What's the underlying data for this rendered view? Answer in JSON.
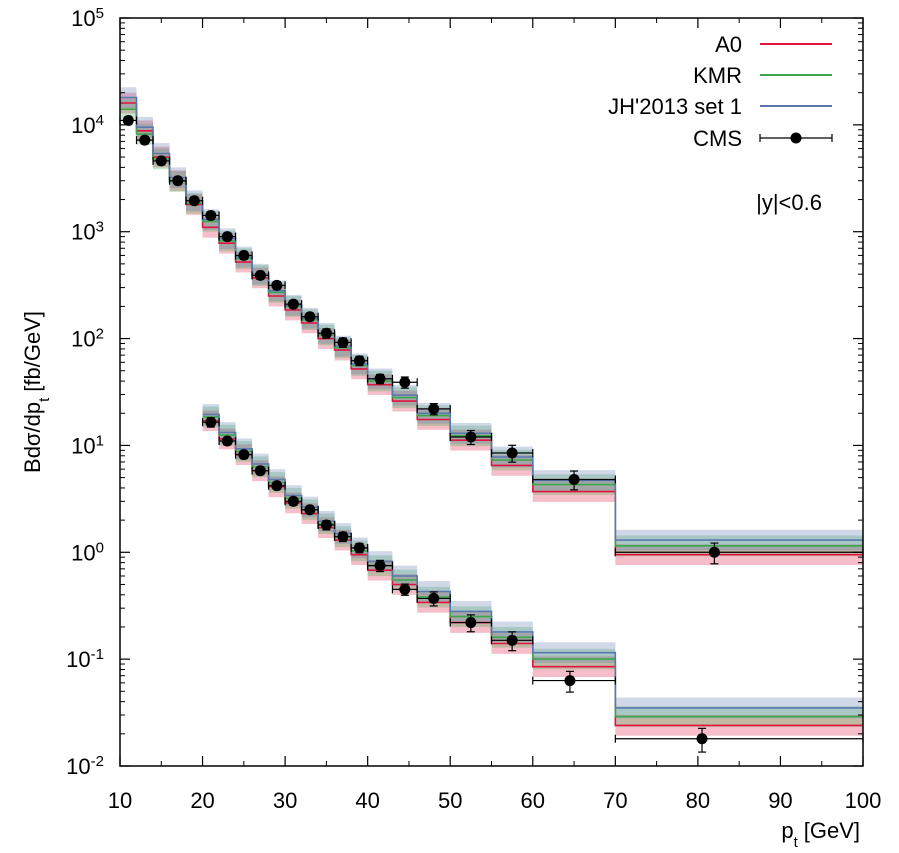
{
  "chart_data": {
    "type": "line",
    "xlabel_main": "p",
    "xlabel_sub": "t",
    "xlabel_unit": "[GeV]",
    "ylabel_pre": "Bdσ/dp",
    "ylabel_sub": "t",
    "ylabel_unit": "[fb/GeV]",
    "xlim": [
      10,
      100
    ],
    "ylim": [
      0.01,
      100000
    ],
    "yscale": "log",
    "xticks": [
      10,
      20,
      30,
      40,
      50,
      60,
      70,
      80,
      90,
      100
    ],
    "xtick_labels": [
      "10",
      "20",
      "30",
      "40",
      "50",
      "60",
      "70",
      "80",
      "90",
      "100"
    ],
    "yticks": [
      {
        "value": 0.01,
        "base": "10",
        "exp": "-2"
      },
      {
        "value": 0.1,
        "base": "10",
        "exp": "-1"
      },
      {
        "value": 1,
        "base": "10",
        "exp": "0"
      },
      {
        "value": 10,
        "base": "10",
        "exp": "1"
      },
      {
        "value": 100,
        "base": "10",
        "exp": "2"
      },
      {
        "value": 1000,
        "base": "10",
        "exp": "3"
      },
      {
        "value": 10000,
        "base": "10",
        "exp": "4"
      },
      {
        "value": 100000,
        "base": "10",
        "exp": "5"
      }
    ],
    "annotation": "|y|<0.6",
    "legend_position": "top-right",
    "legend": [
      {
        "label": "A0",
        "color": "#e0143c",
        "kind": "line"
      },
      {
        "label": "KMR",
        "color": "#3aa84a",
        "kind": "line"
      },
      {
        "label": "JH'2013 set 1",
        "color": "#5a78b0",
        "kind": "line"
      },
      {
        "label": "CMS",
        "color": "#000000",
        "kind": "errorbar"
      }
    ],
    "datasets": [
      {
        "name": "upper",
        "bin_edges": [
          10,
          12,
          14,
          16,
          18,
          20,
          22,
          24,
          26,
          28,
          30,
          32,
          34,
          36,
          38,
          40,
          43,
          46,
          50,
          55,
          60,
          70,
          100
        ],
        "theory": [
          {
            "name": "A0",
            "color": "#e0143c",
            "values": [
              16000,
              8800,
              5000,
              3000,
              1800,
              1100,
              780,
              520,
              370,
              250,
              185,
              140,
              100,
              78,
              52,
              37,
              26,
              17.5,
              11.2,
              6.5,
              3.7,
              0.95
            ]
          },
          {
            "name": "KMR",
            "color": "#3aa84a",
            "values": [
              14000,
              8200,
              4800,
              2950,
              1850,
              1250,
              820,
              560,
              390,
              270,
              200,
              150,
              108,
              82,
              56,
              40,
              28,
              19,
              12.3,
              7.3,
              4.3,
              1.15
            ]
          },
          {
            "name": "JH'2013 set 1",
            "color": "#5a78b0",
            "values": [
              18000,
              9500,
              5400,
              3200,
              1950,
              1300,
              860,
              580,
              400,
              280,
              205,
              155,
              112,
              85,
              58,
              42,
              29.5,
              20,
              13,
              7.8,
              4.7,
              1.3
            ]
          }
        ],
        "cms": {
          "x": [
            11,
            13,
            15,
            17,
            19,
            21,
            23,
            25,
            27,
            29,
            31,
            33,
            35,
            37,
            39,
            41.5,
            44.5,
            48,
            52.5,
            57.5,
            65,
            82
          ],
          "y": [
            11000,
            7200,
            4600,
            3000,
            1950,
            1420,
            900,
            600,
            390,
            315,
            210,
            160,
            112,
            92,
            62,
            42,
            39,
            22,
            12,
            8.5,
            4.8,
            1.0
          ],
          "xerr_lo": [
            1,
            1,
            1,
            1,
            1,
            1,
            1,
            1,
            1,
            1,
            1,
            1,
            1,
            1,
            1,
            1.5,
            1.5,
            2,
            2.5,
            2.5,
            5,
            12
          ],
          "xerr_hi": [
            1,
            1,
            1,
            1,
            1,
            1,
            1,
            1,
            1,
            1,
            1,
            1,
            1,
            1,
            1,
            1.5,
            1.5,
            2,
            2.5,
            2.5,
            5,
            18
          ],
          "yerr_rel": [
            0.08,
            0.08,
            0.08,
            0.08,
            0.08,
            0.08,
            0.08,
            0.08,
            0.08,
            0.08,
            0.08,
            0.08,
            0.1,
            0.1,
            0.1,
            0.1,
            0.12,
            0.12,
            0.15,
            0.18,
            0.2,
            0.22
          ]
        }
      },
      {
        "name": "lower",
        "bin_edges": [
          20,
          22,
          24,
          26,
          28,
          30,
          32,
          34,
          36,
          38,
          40,
          43,
          46,
          50,
          55,
          60,
          70,
          100
        ],
        "theory": [
          {
            "name": "A0",
            "color": "#e0143c",
            "values": [
              17,
              11.5,
              8.2,
              5.8,
              4.1,
              2.9,
              2.3,
              1.7,
              1.3,
              0.95,
              0.68,
              0.5,
              0.34,
              0.22,
              0.14,
              0.085,
              0.024
            ]
          },
          {
            "name": "KMR",
            "color": "#3aa84a",
            "values": [
              18.5,
              12.5,
              8.8,
              6.3,
              4.5,
              3.2,
              2.5,
              1.85,
              1.4,
              1.03,
              0.75,
              0.55,
              0.38,
              0.25,
              0.16,
              0.1,
              0.029
            ]
          },
          {
            "name": "JH'2013 set 1",
            "color": "#5a78b0",
            "values": [
              19.5,
              13.2,
              9.3,
              6.7,
              4.8,
              3.4,
              2.65,
              1.95,
              1.5,
              1.1,
              0.82,
              0.6,
              0.43,
              0.28,
              0.18,
              0.115,
              0.035
            ]
          }
        ],
        "cms": {
          "x": [
            21,
            23,
            25,
            27,
            29,
            31,
            33,
            35,
            37,
            39,
            41.5,
            44.5,
            48,
            52.5,
            57.5,
            64.5,
            80.5
          ],
          "y": [
            16.5,
            11,
            8.2,
            5.8,
            4.2,
            3.0,
            2.5,
            1.8,
            1.4,
            1.1,
            0.75,
            0.45,
            0.37,
            0.22,
            0.15,
            0.063,
            0.018
          ],
          "xerr_lo": [
            1,
            1,
            1,
            1,
            1,
            1,
            1,
            1,
            1,
            1,
            1.5,
            1.5,
            2,
            2.5,
            2.5,
            4.5,
            10.5
          ],
          "xerr_hi": [
            1,
            1,
            1,
            1,
            1,
            1,
            1,
            1,
            1,
            1,
            1.5,
            1.5,
            2,
            2.5,
            2.5,
            5.5,
            19.5
          ],
          "yerr_rel": [
            0.1,
            0.08,
            0.08,
            0.08,
            0.08,
            0.08,
            0.08,
            0.1,
            0.1,
            0.1,
            0.12,
            0.12,
            0.15,
            0.18,
            0.2,
            0.22,
            0.25
          ]
        }
      }
    ]
  }
}
